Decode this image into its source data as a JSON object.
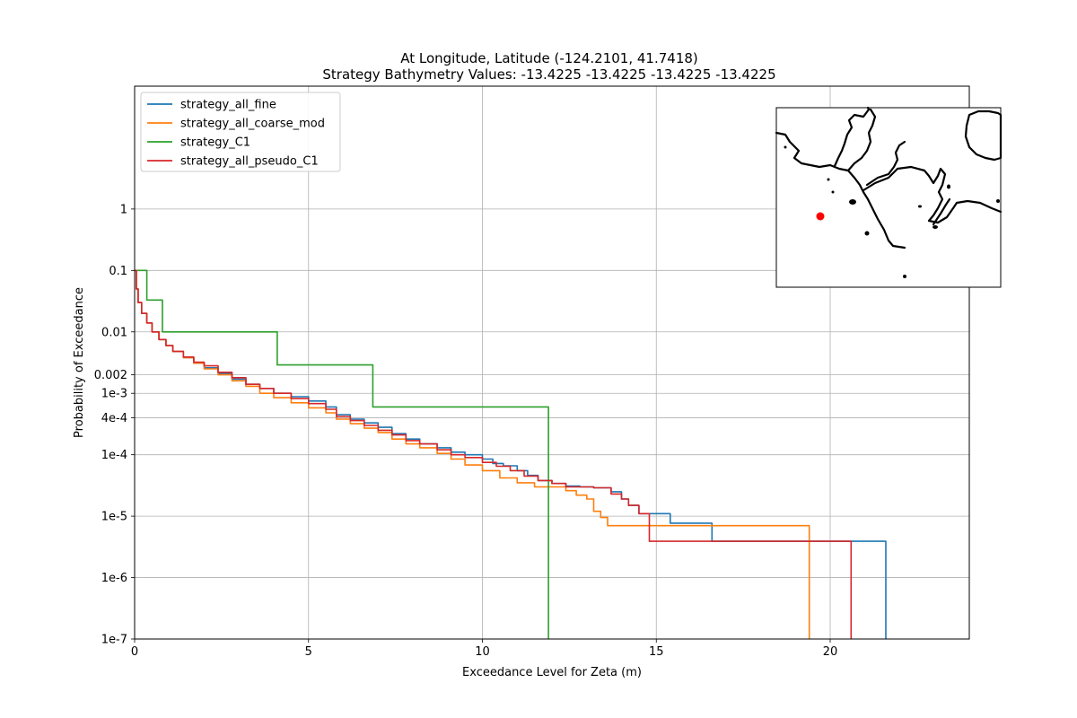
{
  "chart_data": {
    "type": "line",
    "title": "At Longitude, Latitude (-124.2101,  41.7418)",
    "subtitle": "Strategy Bathymetry Values:  -13.4225  -13.4225  -13.4225  -13.4225",
    "xlabel": "Exceedance Level for Zeta (m)",
    "ylabel": "Probability of Exceedance",
    "xlim": [
      0,
      24
    ],
    "ylim": [
      1e-07,
      100
    ],
    "yscale": "log",
    "grid": true,
    "legend_position": "upper-left",
    "x_ticks": [
      {
        "value": 0,
        "label": "0"
      },
      {
        "value": 5,
        "label": "5"
      },
      {
        "value": 10,
        "label": "10"
      },
      {
        "value": 15,
        "label": "15"
      },
      {
        "value": 20,
        "label": "20"
      }
    ],
    "y_ticks": [
      {
        "value": 1,
        "label": "1"
      },
      {
        "value": 0.1,
        "label": "0.1"
      },
      {
        "value": 0.01,
        "label": "0.01"
      },
      {
        "value": 0.002,
        "label": "0.002"
      },
      {
        "value": 0.001,
        "label": "1e-3"
      },
      {
        "value": 0.0004,
        "label": "4e-4"
      },
      {
        "value": 0.0001,
        "label": "1e-4"
      },
      {
        "value": 1e-05,
        "label": "1e-5"
      },
      {
        "value": 1e-06,
        "label": "1e-6"
      },
      {
        "value": 1e-07,
        "label": "1e-7"
      }
    ],
    "series": [
      {
        "name": "strategy_all_fine",
        "color": "#1f77b4",
        "step": true,
        "x": [
          0,
          0.05,
          0.1,
          0.2,
          0.35,
          0.5,
          0.7,
          0.9,
          1.1,
          1.4,
          1.7,
          2.0,
          2.4,
          2.8,
          3.2,
          3.6,
          4.0,
          4.5,
          5.0,
          5.5,
          5.8,
          6.2,
          6.6,
          7.0,
          7.4,
          7.8,
          8.2,
          8.7,
          9.1,
          9.5,
          10.0,
          10.3,
          10.6,
          11.0,
          11.3,
          11.6,
          12.0,
          12.4,
          12.8,
          13.2,
          13.7,
          14.0,
          14.2,
          14.5,
          15.0,
          15.2,
          15.4,
          16.0,
          16.4,
          16.6,
          21.6,
          21.6
        ],
        "y": [
          0.1,
          0.05,
          0.03,
          0.02,
          0.014,
          0.01,
          0.0075,
          0.006,
          0.0048,
          0.0038,
          0.0031,
          0.0026,
          0.0021,
          0.0017,
          0.0014,
          0.0012,
          0.001,
          0.00088,
          0.00075,
          0.0006,
          0.00045,
          0.00038,
          0.00033,
          0.00028,
          0.00022,
          0.00018,
          0.00015,
          0.00013,
          0.00011,
          0.0001,
          8.5e-05,
          7.2e-05,
          6.6e-05,
          5.5e-05,
          4.6e-05,
          3.8e-05,
          3.4e-05,
          3.1e-05,
          3e-05,
          2.9e-05,
          2.5e-05,
          1.9e-05,
          1.5e-05,
          1.1e-05,
          1.1e-05,
          1.1e-05,
          7.7e-06,
          7.7e-06,
          7.7e-06,
          3.9e-06,
          3.9e-06,
          1e-07
        ]
      },
      {
        "name": "strategy_all_coarse_mod",
        "color": "#ff7f0e",
        "step": true,
        "x": [
          0,
          0.05,
          0.1,
          0.2,
          0.35,
          0.5,
          0.7,
          0.9,
          1.1,
          1.4,
          1.7,
          2.0,
          2.4,
          2.8,
          3.2,
          3.6,
          4.0,
          4.5,
          5.0,
          5.5,
          5.8,
          6.2,
          6.6,
          7.0,
          7.4,
          7.8,
          8.2,
          8.7,
          9.1,
          9.5,
          10.0,
          10.5,
          11.0,
          11.5,
          12.0,
          12.4,
          12.7,
          13.0,
          13.2,
          13.4,
          13.6,
          19.4,
          19.4
        ],
        "y": [
          0.1,
          0.05,
          0.03,
          0.02,
          0.014,
          0.01,
          0.0075,
          0.006,
          0.0048,
          0.0038,
          0.0031,
          0.0025,
          0.002,
          0.0016,
          0.0013,
          0.001,
          0.00085,
          0.0007,
          0.00058,
          0.00048,
          0.00038,
          0.00032,
          0.00027,
          0.00023,
          0.00018,
          0.00015,
          0.00013,
          0.000105,
          8.5e-05,
          6.8e-05,
          5.5e-05,
          4.2e-05,
          3.5e-05,
          3e-05,
          3e-05,
          2.6e-05,
          2.2e-05,
          1.9e-05,
          1.2e-05,
          9.5e-06,
          7e-06,
          3.9e-06,
          1e-07
        ]
      },
      {
        "name": "strategy_C1",
        "color": "#2ca02c",
        "step": true,
        "x": [
          0,
          0.35,
          0.8,
          4.1,
          6.85,
          11.9,
          11.9
        ],
        "y": [
          0.1,
          0.033,
          0.01,
          0.0029,
          0.0006,
          0.00013,
          1e-07
        ]
      },
      {
        "name": "strategy_all_pseudo_C1",
        "color": "#d62728",
        "step": true,
        "x": [
          0,
          0.05,
          0.1,
          0.2,
          0.35,
          0.5,
          0.7,
          0.9,
          1.1,
          1.4,
          1.7,
          2.0,
          2.4,
          2.8,
          3.2,
          3.6,
          4.0,
          4.5,
          5.0,
          5.5,
          5.8,
          6.2,
          6.6,
          7.0,
          7.4,
          7.8,
          8.2,
          8.7,
          9.1,
          9.5,
          10.0,
          10.4,
          10.8,
          11.2,
          11.6,
          12.0,
          12.4,
          12.8,
          13.2,
          13.7,
          14.0,
          14.2,
          14.5,
          14.8,
          20.6,
          20.6
        ],
        "y": [
          0.1,
          0.05,
          0.03,
          0.02,
          0.014,
          0.01,
          0.0075,
          0.006,
          0.0048,
          0.0039,
          0.0032,
          0.0028,
          0.0022,
          0.0018,
          0.0014,
          0.0012,
          0.001,
          0.00082,
          0.00068,
          0.00055,
          0.00042,
          0.00036,
          0.0003,
          0.00025,
          0.00021,
          0.00017,
          0.00015,
          0.00012,
          0.0001,
          9e-05,
          7.5e-05,
          6.5e-05,
          5.5e-05,
          4.5e-05,
          3.8e-05,
          3.4e-05,
          3e-05,
          3e-05,
          2.9e-05,
          2.3e-05,
          1.9e-05,
          1.5e-05,
          1.1e-05,
          3.9e-06,
          3.9e-06,
          1e-07
        ]
      }
    ]
  },
  "inset_map": {
    "marker_color": "#ff0000",
    "marker_lon": -124.2101,
    "marker_lat": 41.7418
  }
}
